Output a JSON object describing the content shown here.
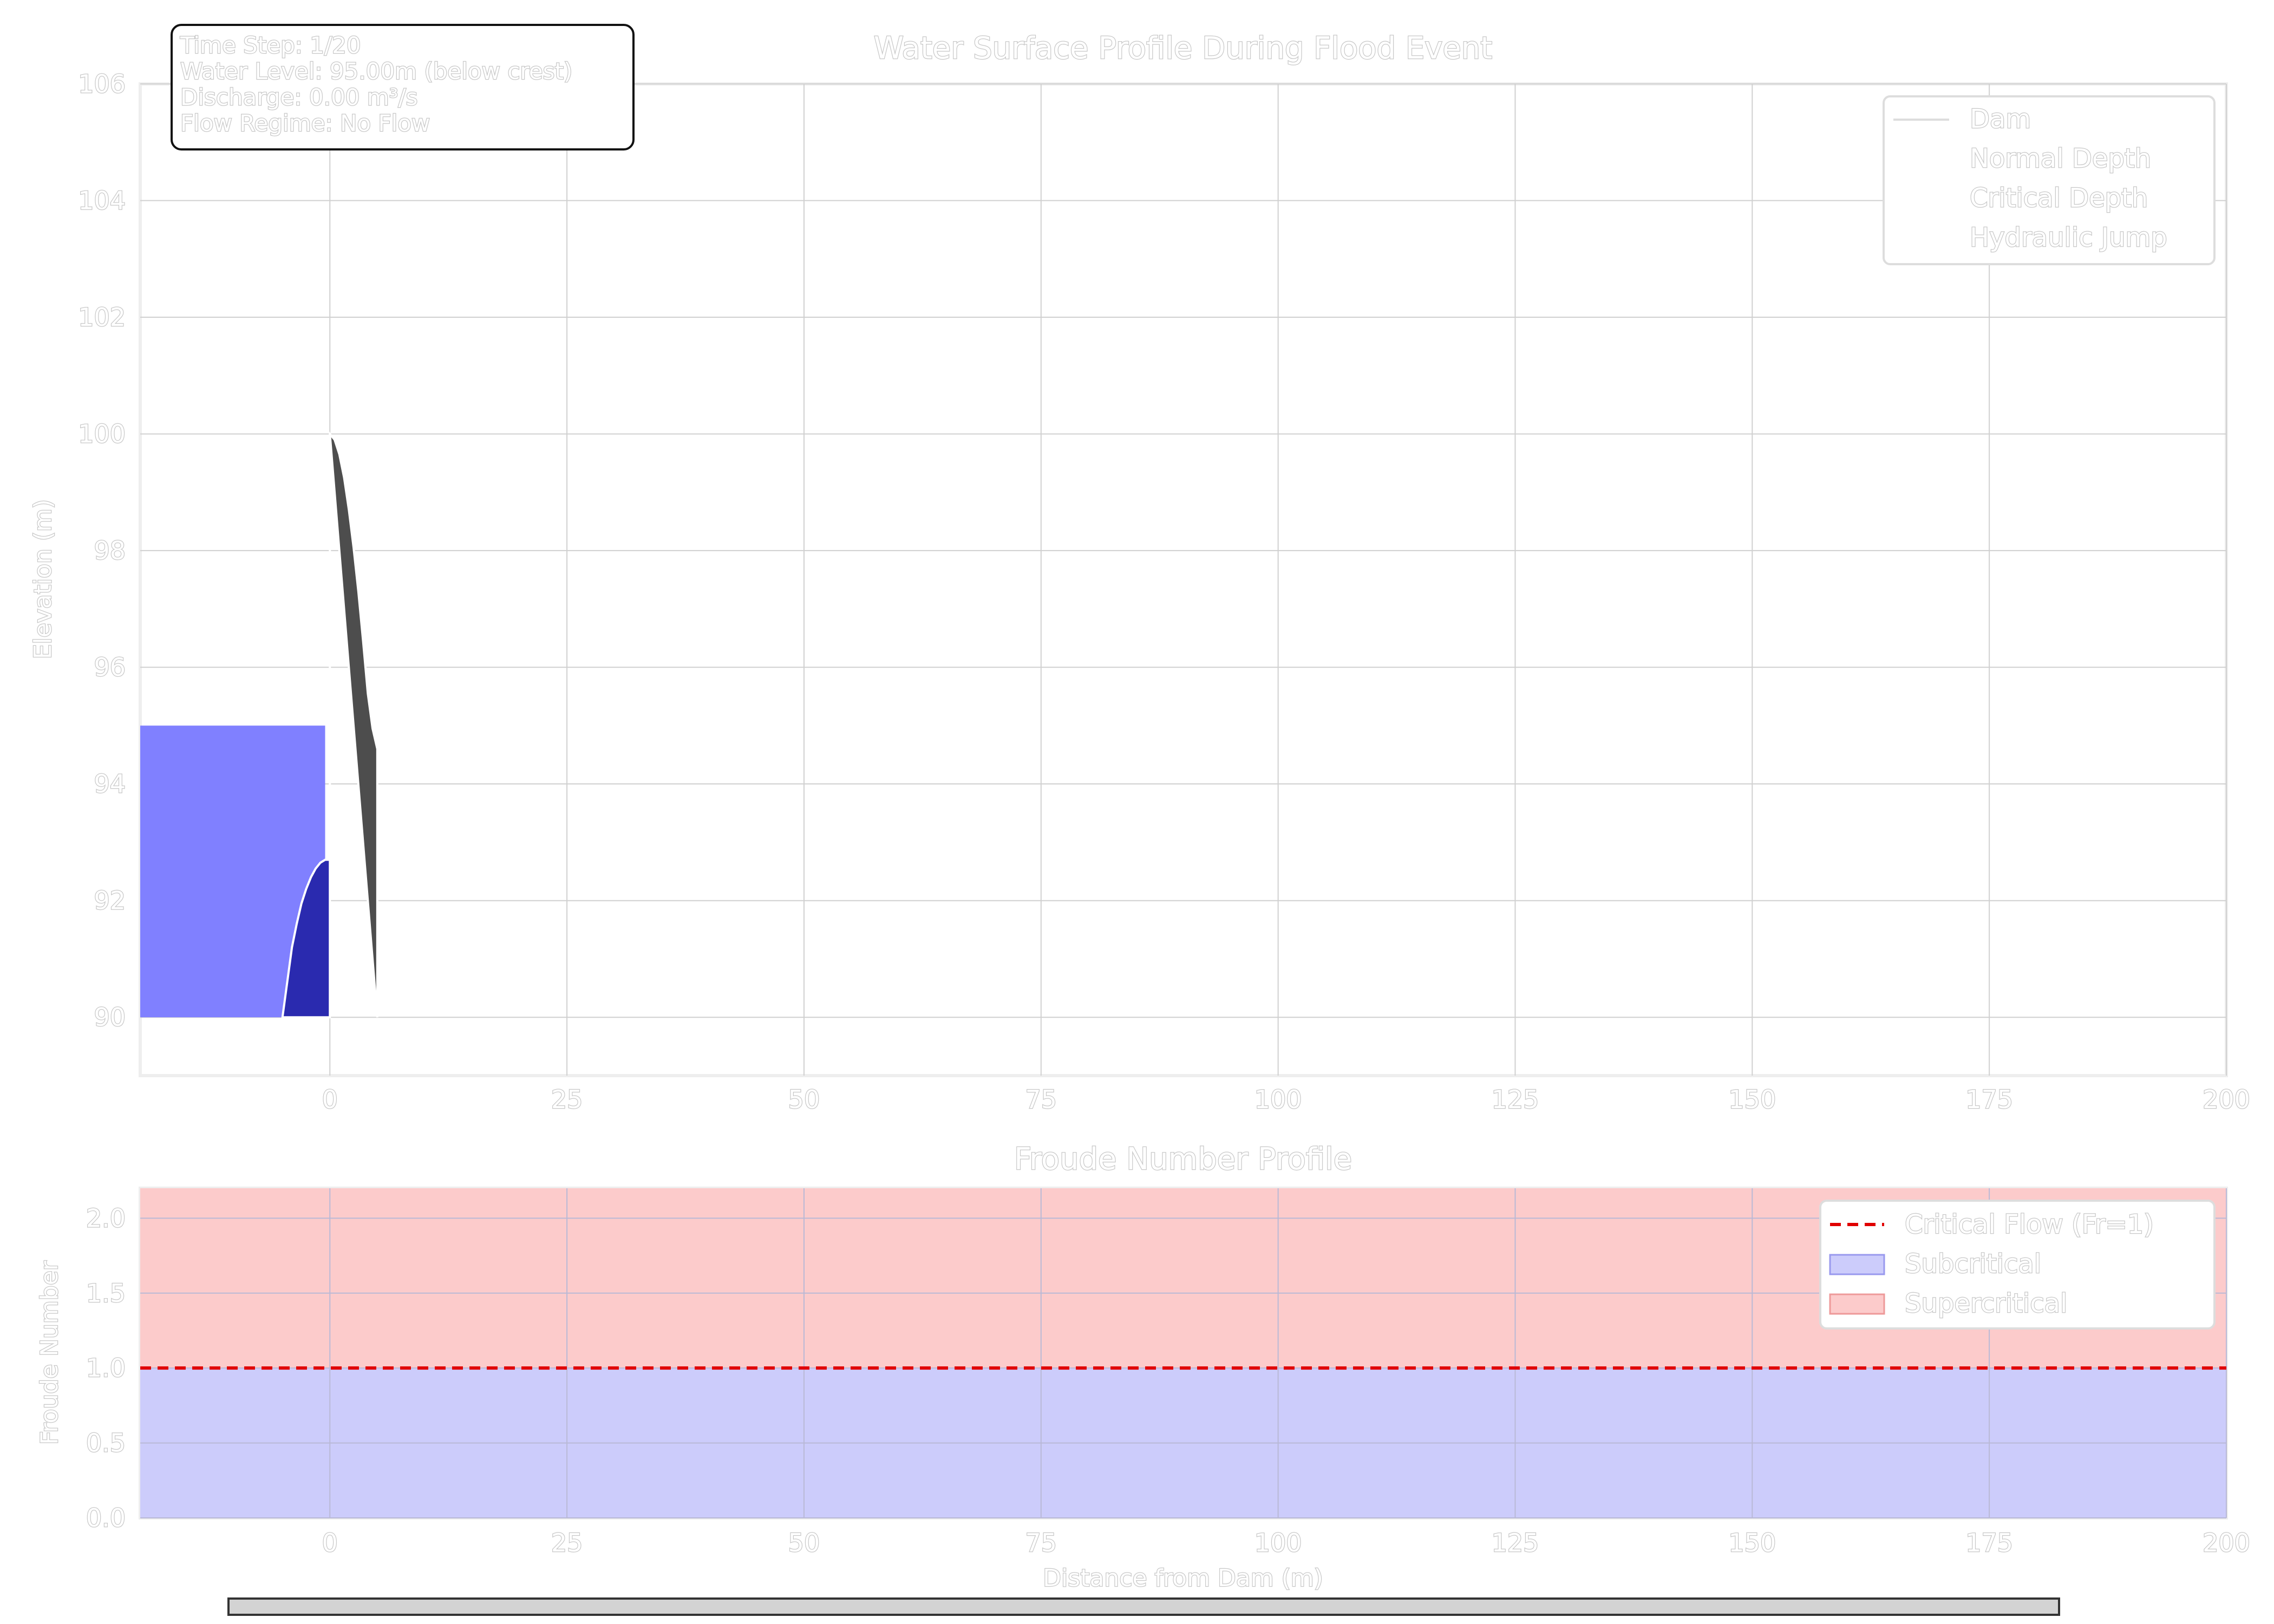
{
  "slider": {
    "label": ""
  },
  "chart_data": [
    {
      "type": "area",
      "title": "Water Surface Profile During Flood Event",
      "xlabel": "",
      "ylabel": "Elevation (m)",
      "xlim": [
        -20,
        200
      ],
      "ylim": [
        89,
        106
      ],
      "xticks": [
        0,
        25,
        50,
        75,
        100,
        125,
        150,
        175,
        200
      ],
      "xtick_labels": [
        "0",
        "25",
        "50",
        "75",
        "100",
        "125",
        "150",
        "175",
        "200"
      ],
      "yticks": [
        90,
        92,
        94,
        96,
        98,
        100,
        102,
        104,
        106
      ],
      "ytick_labels": [
        "90",
        "92",
        "94",
        "96",
        "98",
        "100",
        "102",
        "104",
        "106"
      ],
      "grid": true,
      "legend_position": "top-right",
      "legend": [
        "Dam",
        "Normal Depth",
        "Critical Depth",
        "Hydraulic Jump"
      ],
      "info_box": [
        "Time Step: 1/20",
        "Water Level: 95.00m (below crest)",
        "Discharge: 0.00 m³/s",
        "Flow Regime: No Flow"
      ],
      "reservoir": {
        "x": [
          -20,
          -0.5
        ],
        "bottom": 90,
        "top": 95,
        "color": "#8080ff"
      },
      "dam_upstream_face": {
        "x": [
          -5,
          -4.5,
          -4,
          -3.5,
          -3,
          -2.5,
          -2,
          -1.5,
          -1,
          -0.5,
          0,
          0,
          0
        ],
        "y": [
          90,
          90.6,
          91.2,
          91.6,
          91.95,
          92.2,
          92.4,
          92.55,
          92.65,
          92.7,
          92.7,
          96,
          100
        ],
        "color": "#2a2aaf"
      },
      "dam_downstream_face": {
        "x": [
          0,
          0.5,
          1,
          1.5,
          2,
          2.5,
          3,
          3.5,
          4,
          4.5,
          5,
          5
        ],
        "y": [
          100,
          99.9,
          99.65,
          99.25,
          98.7,
          98.05,
          97.3,
          96.45,
          95.55,
          94.95,
          94.6,
          90
        ],
        "color": "#4d4d4d"
      }
    },
    {
      "type": "area",
      "title": "Froude Number Profile",
      "xlabel": "Distance from Dam (m)",
      "ylabel": "Froude Number",
      "xlim": [
        -20,
        200
      ],
      "ylim": [
        0,
        2.2
      ],
      "xticks": [
        0,
        25,
        50,
        75,
        100,
        125,
        150,
        175,
        200
      ],
      "xtick_labels": [
        "0",
        "25",
        "50",
        "75",
        "100",
        "125",
        "150",
        "175",
        "200"
      ],
      "yticks": [
        0,
        0.5,
        1.0,
        1.5,
        2.0
      ],
      "ytick_labels": [
        "0.0",
        "0.5",
        "1.0",
        "1.5",
        "2.0"
      ],
      "grid": true,
      "legend_position": "top-right",
      "legend": [
        "Critical Flow (Fr=1)",
        "Subcritical",
        "Supercritical"
      ],
      "critical_line": 1.0,
      "subcritical_band": [
        0,
        1.0
      ],
      "supercritical_band": [
        1.0,
        2.2
      ],
      "colors": {
        "critical": "#e00000",
        "subcritical": "#ccccfb",
        "supercritical": "#fccbcb"
      }
    }
  ]
}
